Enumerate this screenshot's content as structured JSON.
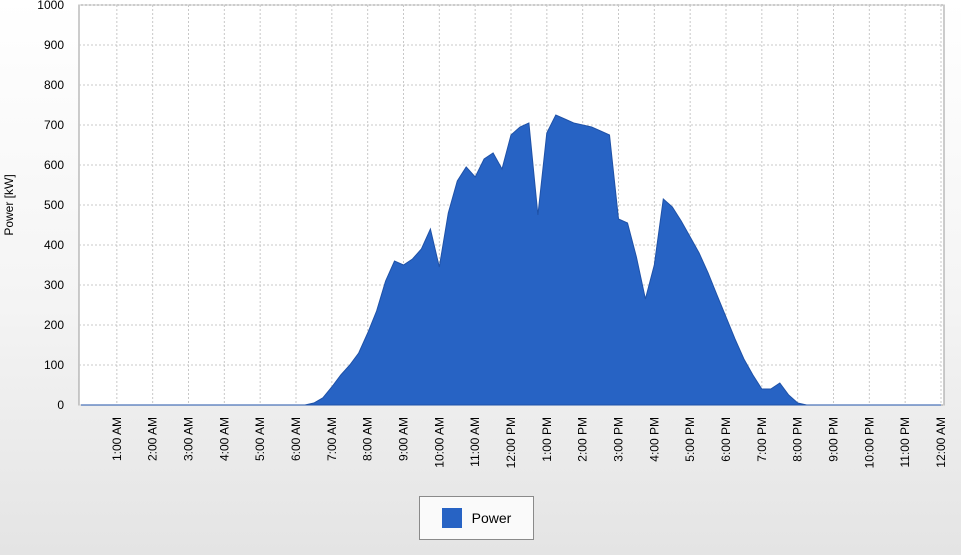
{
  "chart_data": {
    "type": "area",
    "title": "",
    "xlabel": "",
    "ylabel": "Power [kW]",
    "ylim": [
      0,
      1000
    ],
    "yticks": [
      0,
      100,
      200,
      300,
      400,
      500,
      600,
      700,
      800,
      900,
      1000
    ],
    "xlim_hours": [
      0,
      24
    ],
    "xtick_labels": [
      "1:00 AM",
      "2:00 AM",
      "3:00 AM",
      "4:00 AM",
      "5:00 AM",
      "6:00 AM",
      "7:00 AM",
      "8:00 AM",
      "9:00 AM",
      "10:00 AM",
      "11:00 AM",
      "12:00 PM",
      "1:00 PM",
      "2:00 PM",
      "3:00 PM",
      "4:00 PM",
      "5:00 PM",
      "6:00 PM",
      "7:00 PM",
      "8:00 PM",
      "9:00 PM",
      "10:00 PM",
      "11:00 PM",
      "12:00 AM"
    ],
    "grid": true,
    "legend_position": "bottom-center",
    "series": [
      {
        "name": "Power",
        "color": "#2763c4",
        "x": [
          "12:00 AM",
          "6:15 AM",
          "6:30 AM",
          "6:45 AM",
          "7:00 AM",
          "7:15 AM",
          "7:30 AM",
          "7:45 AM",
          "8:00 AM",
          "8:15 AM",
          "8:30 AM",
          "8:45 AM",
          "9:00 AM",
          "9:15 AM",
          "9:30 AM",
          "9:45 AM",
          "10:00 AM",
          "10:15 AM",
          "10:30 AM",
          "10:45 AM",
          "11:00 AM",
          "11:15 AM",
          "11:30 AM",
          "11:45 AM",
          "12:00 PM",
          "12:15 PM",
          "12:30 PM",
          "12:45 PM",
          "1:00 PM",
          "1:15 PM",
          "1:30 PM",
          "1:45 PM",
          "2:00 PM",
          "2:15 PM",
          "2:30 PM",
          "2:45 PM",
          "3:00 PM",
          "3:15 PM",
          "3:30 PM",
          "3:45 PM",
          "4:00 PM",
          "4:15 PM",
          "4:30 PM",
          "4:45 PM",
          "5:00 PM",
          "5:15 PM",
          "5:30 PM",
          "5:45 PM",
          "6:00 PM",
          "6:15 PM",
          "6:30 PM",
          "6:45 PM",
          "7:00 PM",
          "7:15 PM",
          "7:30 PM",
          "7:45 PM",
          "8:00 PM",
          "8:15 PM",
          "8:30 PM",
          "8:45 PM",
          "12:00 AM"
        ],
        "values": [
          0,
          0,
          5,
          18,
          45,
          75,
          100,
          130,
          180,
          235,
          310,
          360,
          350,
          365,
          390,
          440,
          345,
          480,
          560,
          595,
          570,
          615,
          630,
          590,
          675,
          695,
          705,
          475,
          680,
          725,
          715,
          705,
          700,
          695,
          685,
          675,
          465,
          455,
          370,
          265,
          350,
          515,
          495,
          460,
          420,
          380,
          330,
          275,
          220,
          165,
          115,
          75,
          40,
          40,
          55,
          25,
          5,
          0,
          0,
          0,
          0
        ]
      }
    ]
  }
}
